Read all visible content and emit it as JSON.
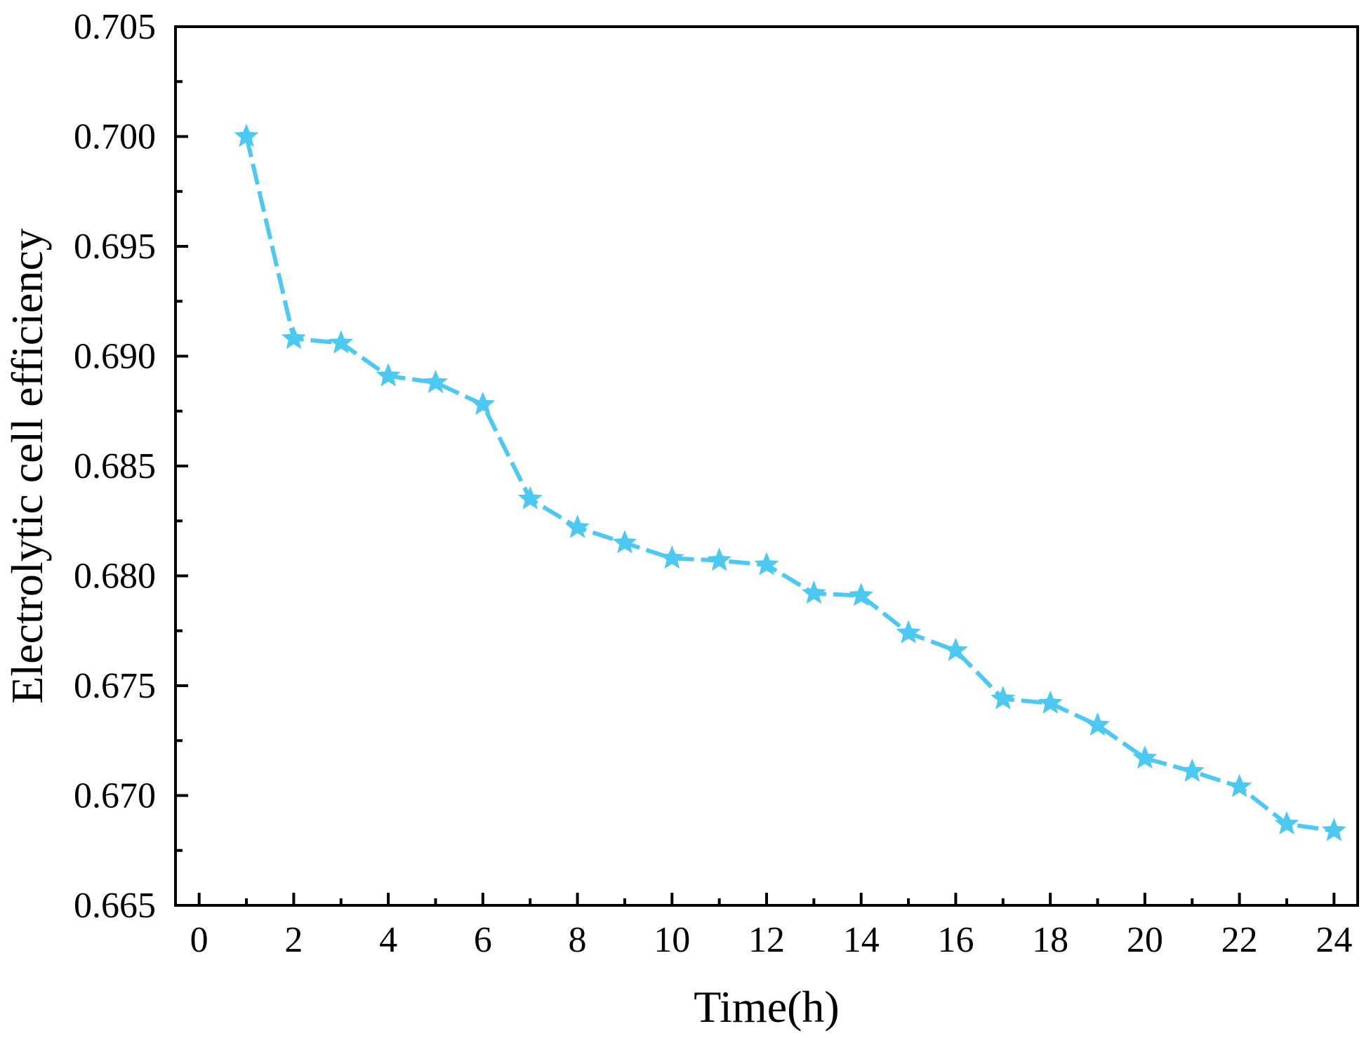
{
  "chart_data": {
    "type": "line",
    "title": "",
    "xlabel": "Time(h)",
    "ylabel": "Electrolytic cell efficiency",
    "xlim": [
      -0.5,
      24.5
    ],
    "ylim": [
      0.665,
      0.705
    ],
    "x_ticks": [
      0,
      2,
      4,
      6,
      8,
      10,
      12,
      14,
      16,
      18,
      20,
      22,
      24
    ],
    "x_tick_labels": [
      "0",
      "2",
      "4",
      "6",
      "8",
      "10",
      "12",
      "14",
      "16",
      "18",
      "20",
      "22",
      "24"
    ],
    "y_ticks": [
      0.665,
      0.67,
      0.675,
      0.68,
      0.685,
      0.69,
      0.695,
      0.7,
      0.705
    ],
    "y_tick_labels": [
      "0.665",
      "0.670",
      "0.675",
      "0.680",
      "0.685",
      "0.690",
      "0.695",
      "0.700",
      "0.705"
    ],
    "grid": false,
    "legend": "none",
    "marker": "star",
    "line_style": "dashed",
    "series": [
      {
        "color": "#4CC9F0",
        "x": [
          1,
          2,
          3,
          4,
          5,
          6,
          7,
          8,
          9,
          10,
          11,
          12,
          13,
          14,
          15,
          16,
          17,
          18,
          19,
          20,
          21,
          22,
          23,
          24
        ],
        "y": [
          0.7,
          0.6908,
          0.6906,
          0.6891,
          0.6888,
          0.6878,
          0.6835,
          0.6822,
          0.6815,
          0.6808,
          0.6807,
          0.6805,
          0.6792,
          0.6791,
          0.6774,
          0.6766,
          0.6744,
          0.6742,
          0.6732,
          0.6717,
          0.6711,
          0.6704,
          0.6687,
          0.6684
        ]
      }
    ]
  }
}
